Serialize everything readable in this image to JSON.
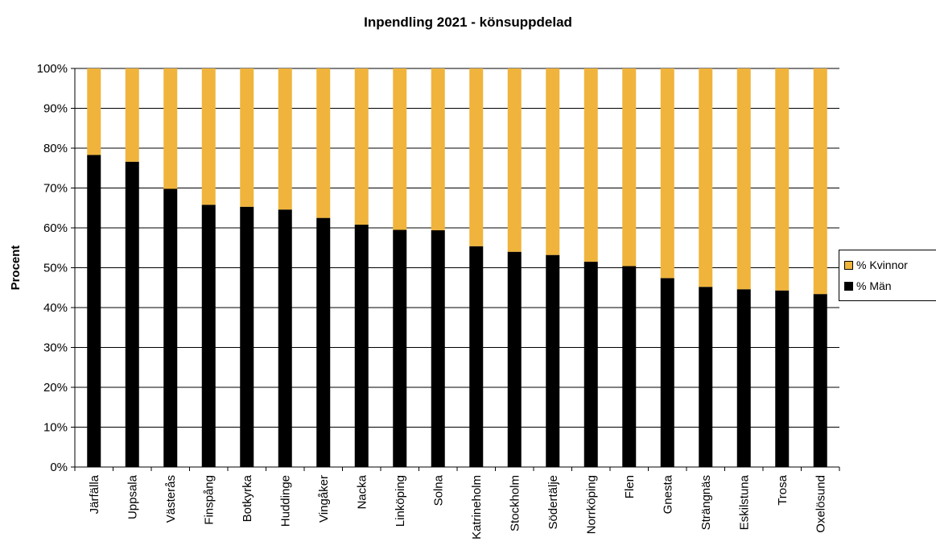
{
  "chart_data": {
    "type": "bar",
    "stacked": true,
    "title": "Inpendling 2021 - könsuppdelad",
    "ylabel": "Procent",
    "xlabel": "",
    "ylim": [
      0,
      100
    ],
    "yticks": [
      "0%",
      "10%",
      "20%",
      "30%",
      "40%",
      "50%",
      "60%",
      "70%",
      "80%",
      "90%",
      "100%"
    ],
    "grid": true,
    "legend_position": "right",
    "categories": [
      "Järfälla",
      "Uppsala",
      "Västerås",
      "Finspång",
      "Botkyrka",
      "Huddinge",
      "Vingåker",
      "Nacka",
      "Linköping",
      "Solna",
      "Katrineholm",
      "Stockholm",
      "Södertälje",
      "Norrköping",
      "Flen",
      "Gnesta",
      "Strängnäs",
      "Eskilstuna",
      "Trosa",
      "Oxelösund"
    ],
    "series": [
      {
        "name": "% Män",
        "color": "#000000",
        "values": [
          78.3,
          76.6,
          69.8,
          65.8,
          65.3,
          64.6,
          62.5,
          60.8,
          59.5,
          59.4,
          55.4,
          54.0,
          53.2,
          51.5,
          50.4,
          47.4,
          45.2,
          44.6,
          44.3,
          43.4
        ]
      },
      {
        "name": "% Kvinnor",
        "color": "#F0B43C",
        "values": [
          21.7,
          23.4,
          30.2,
          34.2,
          34.7,
          35.4,
          37.5,
          39.2,
          40.5,
          40.6,
          44.6,
          46.0,
          46.8,
          48.5,
          49.6,
          52.6,
          54.8,
          55.4,
          55.7,
          56.6
        ]
      }
    ]
  },
  "legend": {
    "items": [
      {
        "label": "% Kvinnor",
        "color": "#F0B43C"
      },
      {
        "label": "% Män",
        "color": "#000000"
      }
    ]
  }
}
